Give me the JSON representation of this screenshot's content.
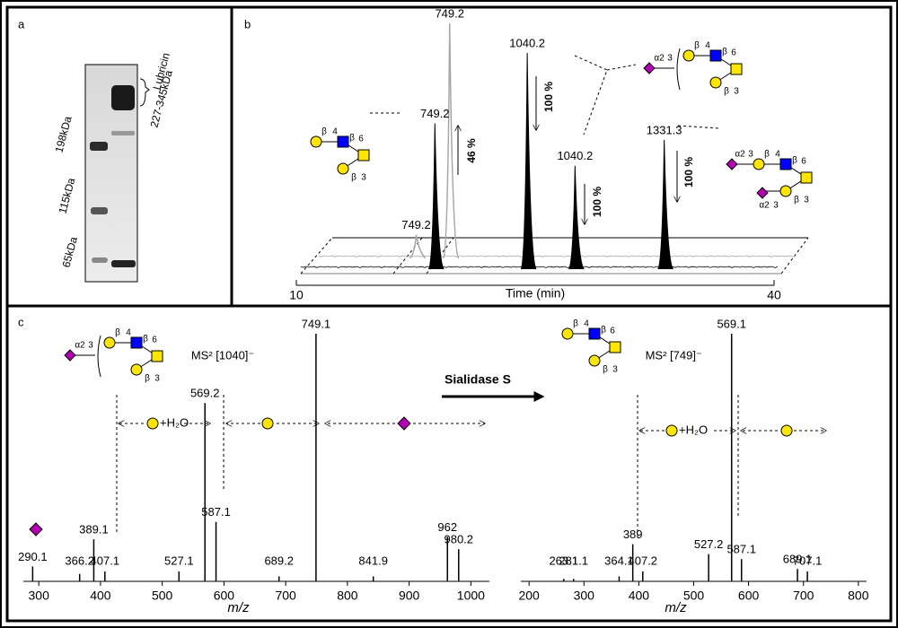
{
  "panel_a": {
    "label": "a",
    "bracket_labels": [
      "Lubricin",
      "227-345kDa"
    ],
    "markers": [
      "198kDa",
      "115kDa",
      "65kDa"
    ]
  },
  "panel_b": {
    "label": "b",
    "chart_data": {
      "type": "chromatogram",
      "x_label": "Time (min)",
      "xlim": [
        10,
        40
      ],
      "xticks": [
        10,
        40
      ],
      "ylim": [
        0,
        100
      ],
      "traces": [
        {
          "color": "#a6a6a6",
          "peaks": [
            {
              "label": "749.2",
              "time": 16.4,
              "intensity": 10
            },
            {
              "label": "749.2",
              "time": 18.5,
              "intensity": 100
            }
          ]
        },
        {
          "color": "#000000",
          "peaks": [
            {
              "label": "749.2",
              "time": 18.7,
              "intensity": 62
            },
            {
              "label": "1040.2",
              "time": 24.5,
              "intensity": 92
            },
            {
              "label": "1040.2",
              "time": 27.5,
              "intensity": 44
            },
            {
              "label": "1331.3",
              "time": 33.1,
              "intensity": 55
            }
          ]
        }
      ]
    },
    "ratios": [
      "46 %",
      "100 %",
      "100 %",
      "100 %"
    ],
    "glycans": [
      {
        "kind": "core",
        "labels": [
          "β",
          "4",
          "β",
          "6",
          "β",
          "3"
        ]
      },
      {
        "kind": "mono",
        "labels": [
          "α2",
          "3",
          "β",
          "4",
          "β",
          "6",
          "β",
          "3"
        ]
      },
      {
        "kind": "di",
        "labels": [
          "α2",
          "3",
          "β",
          "4",
          "β",
          "6",
          "β",
          "3",
          "α2",
          "3"
        ]
      }
    ]
  },
  "panel_c": {
    "label": "c",
    "arrow_label": "Sialidase S",
    "glycans": [
      {
        "kind": "mono",
        "labels": [
          "α2",
          "3",
          "β",
          "4",
          "β",
          "6",
          "β",
          "3"
        ]
      },
      {
        "kind": "core",
        "labels": [
          "β",
          "4",
          "β",
          "6",
          "β",
          "3"
        ]
      }
    ],
    "chart_data": [
      {
        "type": "spectrum",
        "title": "MS² [1040]⁻",
        "x_label": "m/z",
        "annotation": "+H₂O",
        "xlim": [
          275,
          1030
        ],
        "xticks": [
          300,
          400,
          500,
          600,
          700,
          800,
          900,
          1000
        ],
        "ylim": [
          0,
          100
        ],
        "x": [
          290.1,
          366.2,
          389.1,
          407.1,
          527.1,
          569.2,
          587.1,
          689.2,
          749.1,
          841.9,
          962.0,
          980.2
        ],
        "values": [
          6,
          3,
          17,
          4,
          4,
          72,
          24,
          2,
          100,
          2,
          18,
          13
        ]
      },
      {
        "type": "spectrum",
        "title": "MS² [749]⁻",
        "x_label": "m/z",
        "annotation": "+H₂O",
        "xlim": [
          185,
          815
        ],
        "xticks": [
          200,
          300,
          400,
          500,
          600,
          700,
          800
        ],
        "ylim": [
          0,
          100
        ],
        "x": [
          263.1,
          281.1,
          364.1,
          389.0,
          407.2,
          527.2,
          569.1,
          587.1,
          689.1,
          707.1
        ],
        "values": [
          1,
          1,
          2,
          15,
          4,
          11,
          100,
          9,
          5,
          4
        ]
      }
    ]
  }
}
